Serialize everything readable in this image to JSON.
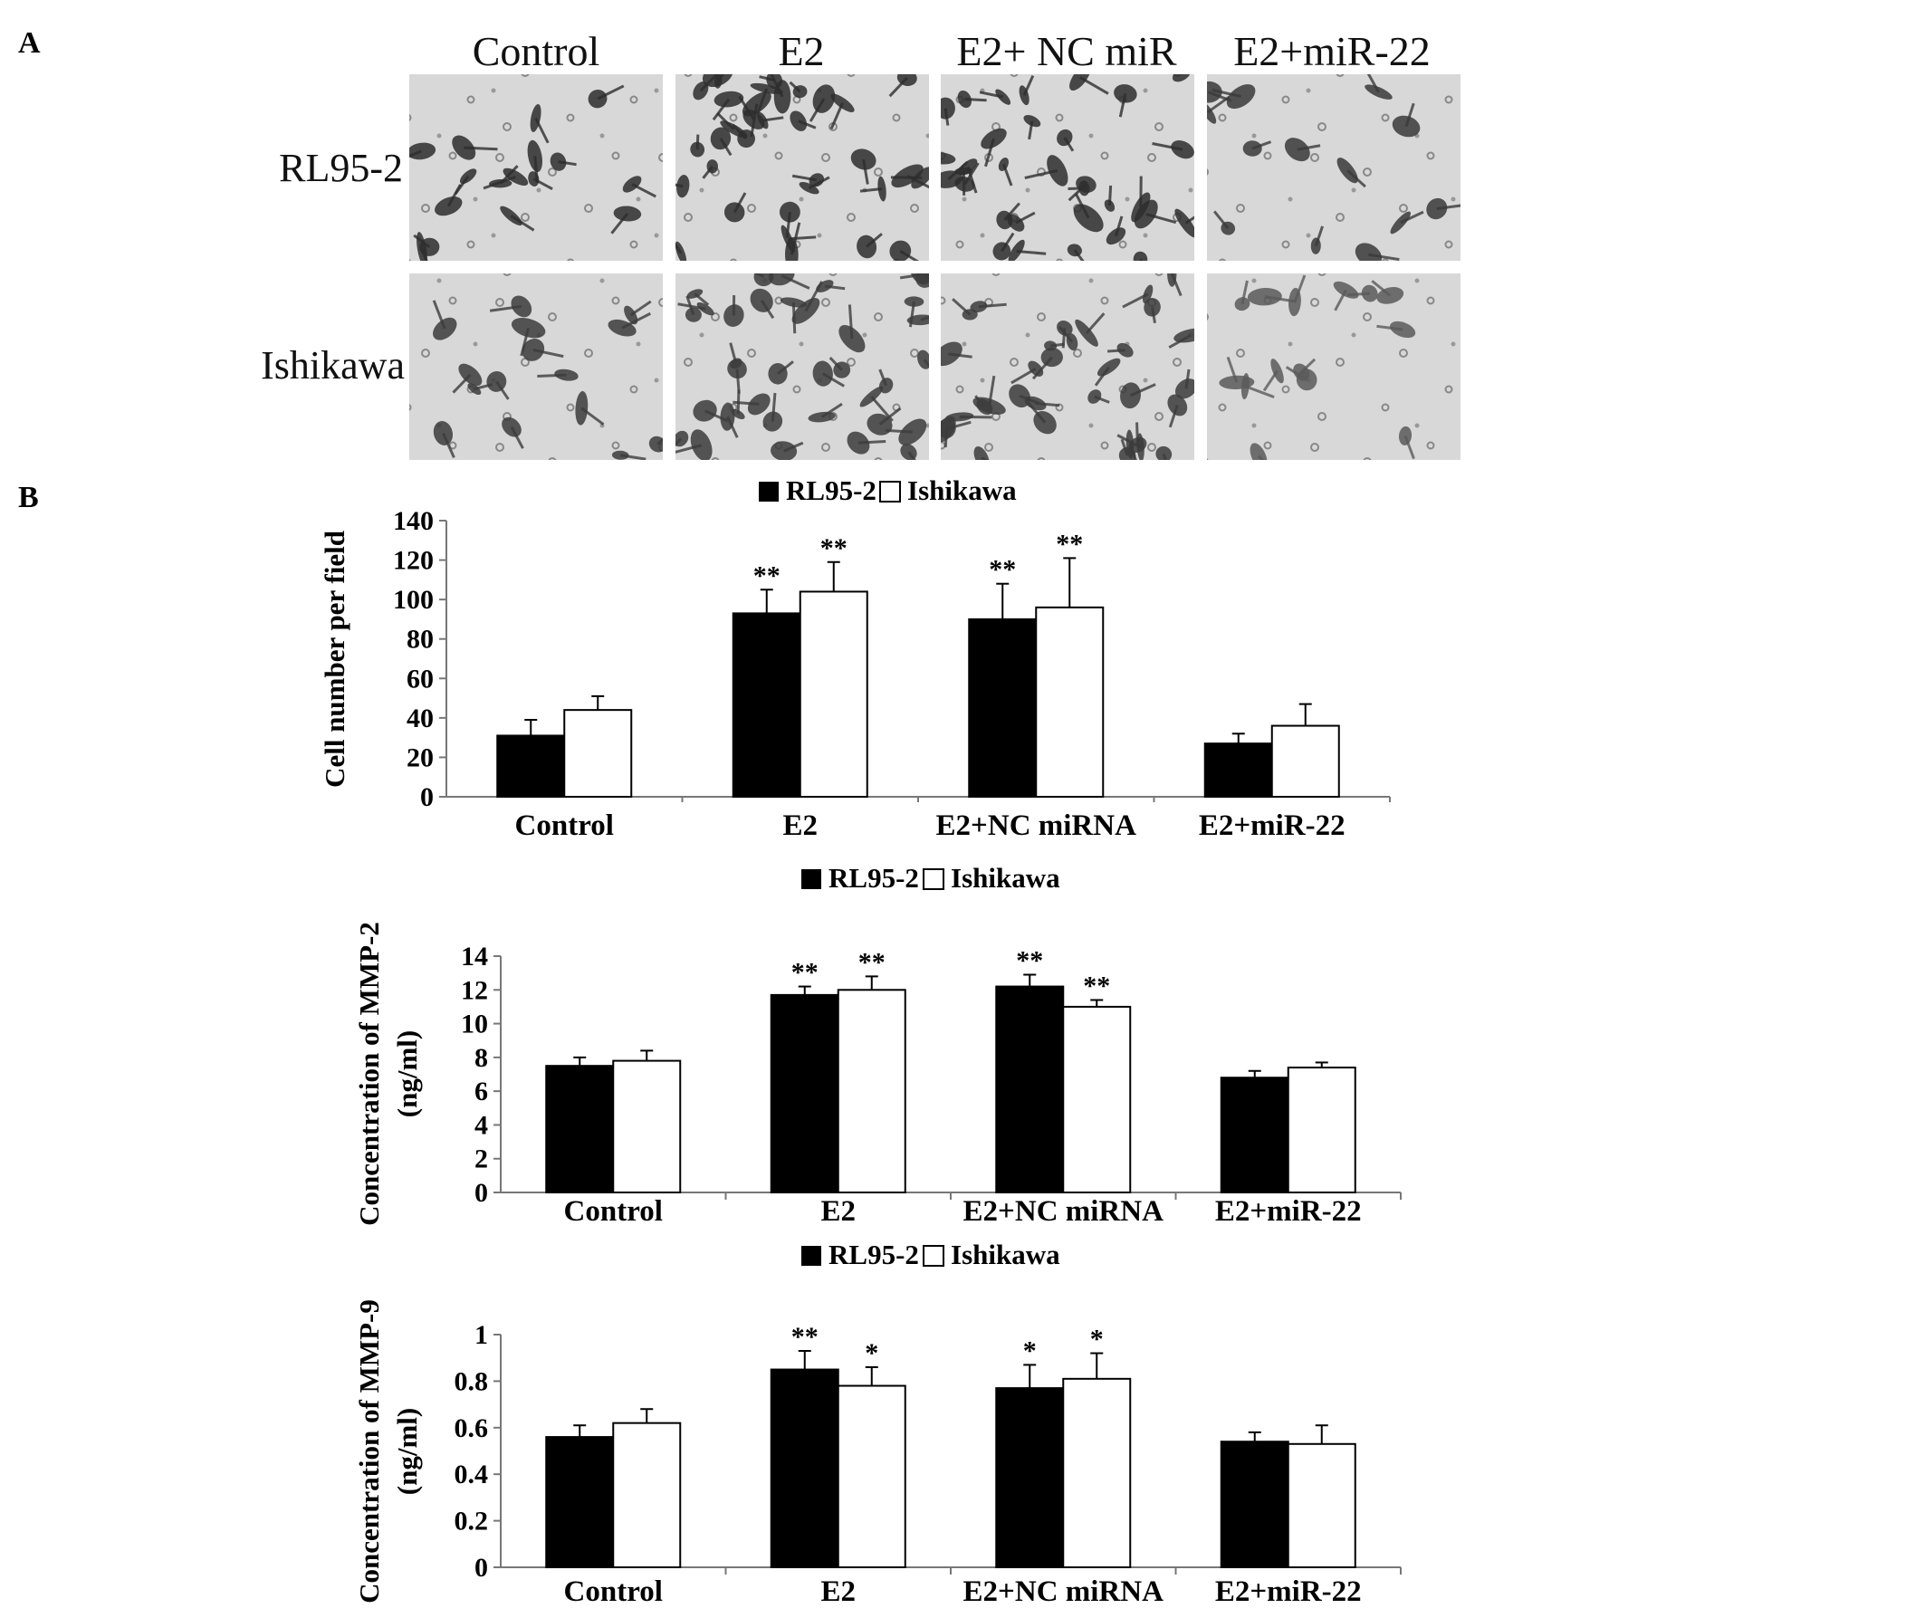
{
  "panels": {
    "a_label": "A",
    "b_label": "B"
  },
  "micrographs": {
    "columns": [
      "Control",
      "E2",
      "E2+ NC miR",
      "E2+miR-22"
    ],
    "rows": [
      "RL95-2",
      "Ishikawa"
    ]
  },
  "chart_data": [
    {
      "type": "bar",
      "categories": [
        "Control",
        "E2",
        "E2+NC miRNA",
        "E2+miR-22"
      ],
      "ylabel": "Cell number per field",
      "ylabel_line2": "",
      "ylim": [
        0,
        140
      ],
      "yticks": [
        "0",
        "20",
        "40",
        "60",
        "80",
        "100",
        "120",
        "140"
      ],
      "legend": "top-center",
      "series": [
        {
          "name": "RL95-2",
          "color": "#000000",
          "values": [
            31,
            93,
            90,
            27
          ],
          "errors": [
            8,
            12,
            18,
            5
          ],
          "sig": [
            "",
            "**",
            "**",
            ""
          ]
        },
        {
          "name": "Ishikawa",
          "color": "#ffffff",
          "values": [
            44,
            104,
            96,
            36
          ],
          "errors": [
            7,
            15,
            25,
            11
          ],
          "sig": [
            "",
            "**",
            "**",
            ""
          ]
        }
      ]
    },
    {
      "type": "bar",
      "categories": [
        "Control",
        "E2",
        "E2+NC miRNA",
        "E2+miR-22"
      ],
      "ylabel": "Concentration of MMP-2",
      "ylabel_line2": "(ng/ml)",
      "ylim": [
        0,
        14
      ],
      "yticks": [
        "0",
        "2",
        "4",
        "6",
        "8",
        "10",
        "12",
        "14"
      ],
      "legend": "top-center",
      "series": [
        {
          "name": "RL95-2",
          "color": "#000000",
          "values": [
            7.5,
            11.7,
            12.2,
            6.8
          ],
          "errors": [
            0.5,
            0.5,
            0.7,
            0.4
          ],
          "sig": [
            "",
            "**",
            "**",
            ""
          ]
        },
        {
          "name": "Ishikawa",
          "color": "#ffffff",
          "values": [
            7.8,
            12.0,
            11.0,
            7.4
          ],
          "errors": [
            0.6,
            0.8,
            0.4,
            0.3
          ],
          "sig": [
            "",
            "**",
            "**",
            ""
          ]
        }
      ]
    },
    {
      "type": "bar",
      "categories": [
        "Control",
        "E2",
        "E2+NC miRNA",
        "E2+miR-22"
      ],
      "ylabel": "Concentration of MMP-9",
      "ylabel_line2": "(ng/ml)",
      "ylim": [
        0,
        1
      ],
      "yticks": [
        "0",
        "0.2",
        "0.4",
        "0.6",
        "0.8",
        "1"
      ],
      "legend": "top-center",
      "series": [
        {
          "name": "RL95-2",
          "color": "#000000",
          "values": [
            0.56,
            0.85,
            0.77,
            0.54
          ],
          "errors": [
            0.05,
            0.08,
            0.1,
            0.04
          ],
          "sig": [
            "",
            "**",
            "*",
            ""
          ]
        },
        {
          "name": "Ishikawa",
          "color": "#ffffff",
          "values": [
            0.62,
            0.78,
            0.81,
            0.53
          ],
          "errors": [
            0.06,
            0.08,
            0.11,
            0.08
          ],
          "sig": [
            "",
            "*",
            "*",
            ""
          ]
        }
      ]
    }
  ]
}
